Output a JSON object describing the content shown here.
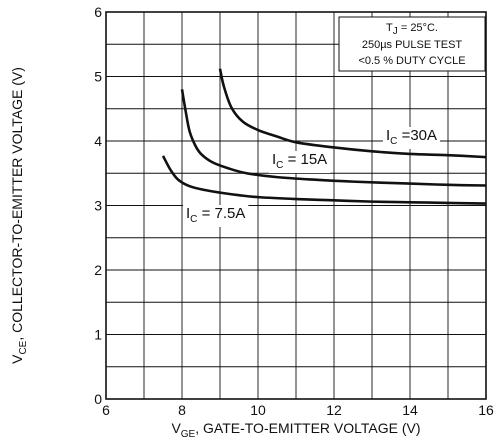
{
  "chart_data": {
    "type": "line",
    "xlabel": {
      "sym": "V",
      "sub": "GE",
      "text": ", GATE-TO-EMITTER VOLTAGE (V)"
    },
    "ylabel": {
      "sym": "V",
      "sub": "CE",
      "text": ", COLLECTOR-TO-EMITTER VOLTAGE (V)"
    },
    "xlim": [
      6,
      16
    ],
    "ylim": [
      0,
      6
    ],
    "xticks": [
      "6",
      "8",
      "10",
      "12",
      "14",
      "16"
    ],
    "yticks": [
      "0",
      "1",
      "2",
      "3",
      "4",
      "5",
      "6"
    ],
    "grid": true,
    "conditions": {
      "line1": {
        "sym": "T",
        "sub": "J",
        "text": " = 25°C."
      },
      "line2": "250µs PULSE TEST",
      "line3": "<0.5 % DUTY CYCLE"
    },
    "series": [
      {
        "name": "IC = 7.5A",
        "label": {
          "sym": "I",
          "sub": "C",
          "text": " = 7.5A"
        },
        "x": [
          7.5,
          7.7,
          7.9,
          8.2,
          8.6,
          9,
          9.5,
          10,
          11,
          12,
          13,
          14,
          15,
          16
        ],
        "y": [
          3.77,
          3.55,
          3.4,
          3.3,
          3.24,
          3.2,
          3.16,
          3.13,
          3.1,
          3.08,
          3.06,
          3.05,
          3.04,
          3.03
        ]
      },
      {
        "name": "IC = 15A",
        "label": {
          "sym": "I",
          "sub": "C",
          "text": " = 15A"
        },
        "x": [
          8,
          8.1,
          8.2,
          8.35,
          8.5,
          8.8,
          9.2,
          9.7,
          10.5,
          11.5,
          12.5,
          14,
          15,
          16
        ],
        "y": [
          4.8,
          4.45,
          4.15,
          3.93,
          3.8,
          3.67,
          3.58,
          3.5,
          3.44,
          3.4,
          3.37,
          3.34,
          3.32,
          3.31
        ]
      },
      {
        "name": "IC =30A",
        "label": {
          "sym": "I",
          "sub": "C",
          "text": " =30A"
        },
        "x": [
          9,
          9.1,
          9.3,
          9.6,
          10,
          10.5,
          11,
          12,
          13,
          14,
          15,
          16
        ],
        "y": [
          5.12,
          4.85,
          4.52,
          4.3,
          4.17,
          4.07,
          3.98,
          3.9,
          3.84,
          3.8,
          3.78,
          3.75
        ]
      }
    ]
  }
}
